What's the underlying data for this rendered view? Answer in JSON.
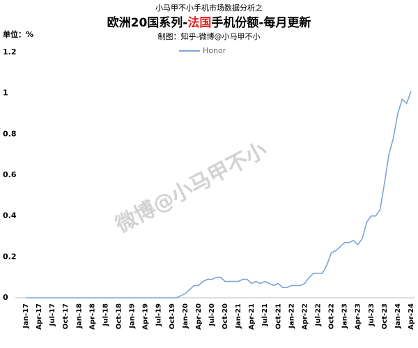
{
  "chart_data": {
    "type": "line",
    "pretitle": "小马甲不小手机市场数据分析之",
    "title_parts": [
      "欧洲20国系列-",
      "法国",
      "手机份额-每月更新"
    ],
    "subtitle": "制图：知乎-微博@小马甲不小",
    "unit_label": "单位：%",
    "watermark": "微博@小马甲不小",
    "categories": [
      "Jan-17",
      null,
      null,
      "Apr-17",
      null,
      null,
      "Jul-17",
      null,
      null,
      "Oct-17",
      null,
      null,
      "Jan-18",
      null,
      null,
      "Apr-18",
      null,
      null,
      "Jul-18",
      null,
      null,
      "Oct-18",
      null,
      null,
      "Jan-19",
      null,
      null,
      "Apr-19",
      null,
      null,
      "Jul-19",
      null,
      null,
      "Oct-19",
      null,
      null,
      "Jan-20",
      null,
      null,
      "Apr-20",
      null,
      null,
      "Jul-20",
      null,
      null,
      "Oct-20",
      null,
      null,
      "Jan-21",
      null,
      null,
      "Apr-21",
      null,
      null,
      "Jul-21",
      null,
      null,
      "Oct-21",
      null,
      null,
      "Jan-22",
      null,
      null,
      "Apr-22",
      null,
      null,
      "Jul-22",
      null,
      null,
      "Oct-22",
      null,
      null,
      "Jan-23",
      null,
      null,
      "Apr-23",
      null,
      null,
      "Jul-23",
      null,
      null,
      "Oct-23",
      null,
      null,
      "Jan-24",
      null,
      null,
      "Apr-24"
    ],
    "series": [
      {
        "name": "Honor",
        "color": "#7da3d8",
        "values": [
          0,
          0,
          0,
          0,
          0,
          0,
          0,
          0,
          0,
          0,
          0,
          0,
          0,
          0,
          0,
          0,
          0,
          0,
          0,
          0,
          0,
          0,
          0,
          0,
          0,
          0,
          0,
          0,
          0,
          0,
          0,
          0,
          0,
          0,
          0,
          0.01,
          0.02,
          0.04,
          0.06,
          0.06,
          0.08,
          0.09,
          0.09,
          0.1,
          0.1,
          0.08,
          0.08,
          0.08,
          0.08,
          0.09,
          0.09,
          0.07,
          0.08,
          0.07,
          0.08,
          0.07,
          0.06,
          0.07,
          0.05,
          0.05,
          0.06,
          0.06,
          0.06,
          0.07,
          0.1,
          0.12,
          0.12,
          0.12,
          0.16,
          0.22,
          0.23,
          0.25,
          0.27,
          0.27,
          0.28,
          0.26,
          0.29,
          0.37,
          0.4,
          0.4,
          0.43,
          0.56,
          0.7,
          0.78,
          0.9,
          0.97,
          0.95,
          1.01
        ]
      }
    ],
    "ylim": [
      0,
      1.2
    ],
    "yticks": [
      0,
      0.2,
      0.4,
      0.6,
      0.8,
      1,
      1.2
    ],
    "grid": false,
    "legend": "top"
  }
}
